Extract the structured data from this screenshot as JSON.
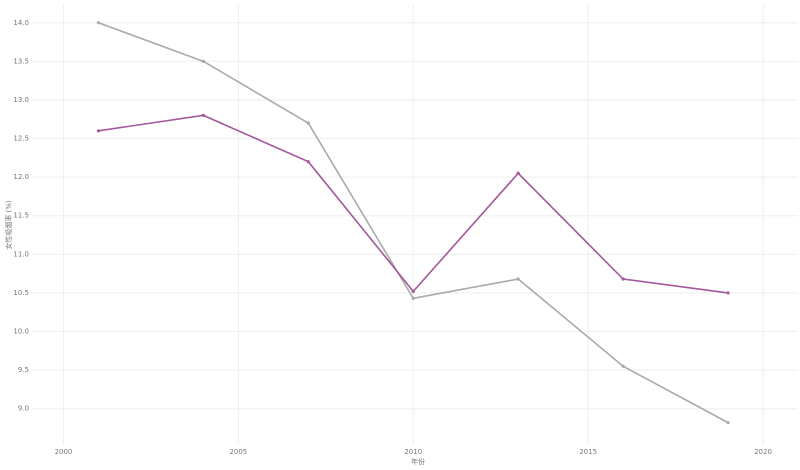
{
  "chart_data": {
    "type": "line",
    "x_label": "年份",
    "y_label": "女性吸烟率 (%)",
    "x": [
      2001,
      2004,
      2007,
      2010,
      2013,
      2016,
      2019
    ],
    "series": [
      {
        "color": "#aaaaaa",
        "values": [
          14.0,
          13.5,
          12.7,
          10.43,
          10.68,
          9.55,
          8.82
        ]
      },
      {
        "color": "#a4579a",
        "values": [
          12.6,
          12.8,
          12.2,
          10.52,
          12.05,
          10.68,
          10.5
        ]
      }
    ],
    "xlim": [
      1999.1,
      2021
    ],
    "xticks": [
      2000,
      2005,
      2010,
      2015,
      2020
    ],
    "ylim": [
      8.53,
      14.23
    ],
    "yticks": [
      {
        "value": 9,
        "label": "9.0"
      },
      9.5,
      {
        "value": 10,
        "label": "10.0"
      },
      10.5,
      {
        "value": 11,
        "label": "11.0"
      },
      11.5,
      {
        "value": 12,
        "label": "12.0"
      },
      12.5,
      {
        "value": 13,
        "label": "13.0"
      },
      13.5,
      {
        "value": 14,
        "label": "14.0"
      }
    ],
    "grid": true
  }
}
